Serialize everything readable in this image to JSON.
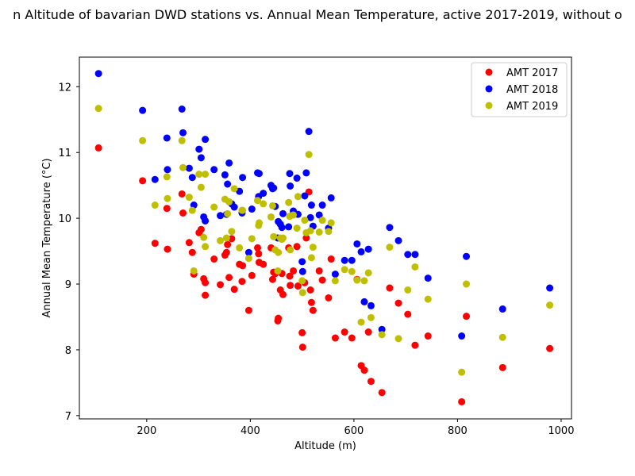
{
  "chart_data": {
    "type": "scatter",
    "title": "n Altitude of bavarian DWD stations vs. Annual Mean Temperature, active 2017-2019, without o",
    "xlabel": "Altitude (m)",
    "ylabel": "Annual Mean Temperature (°C)",
    "xlim": [
      70,
      1020
    ],
    "ylim": [
      6.95,
      12.45
    ],
    "xticks": [
      200,
      400,
      600,
      800,
      1000
    ],
    "yticks": [
      7,
      8,
      9,
      10,
      11,
      12
    ],
    "legend_position": "top-right",
    "grid": false,
    "x": [
      107,
      192,
      216,
      239,
      240,
      268,
      270,
      282,
      288,
      291,
      301,
      305,
      310,
      313,
      313,
      330,
      342,
      351,
      354,
      356,
      359,
      364,
      369,
      379,
      384,
      385,
      397,
      403,
      414,
      416,
      417,
      425,
      440,
      443,
      445,
      448,
      453,
      454,
      458,
      461,
      463,
      474,
      476,
      477,
      483,
      490,
      492,
      500,
      501,
      505,
      508,
      513,
      516,
      518,
      521,
      533,
      539,
      551,
      556,
      564,
      582,
      596,
      606,
      614,
      620,
      628,
      633,
      654,
      669,
      686,
      704,
      718,
      743,
      808,
      817,
      887,
      978
    ],
    "series": [
      {
        "name": "AMT 2017",
        "color": "#ff0000",
        "y": [
          11.07,
          10.57,
          9.62,
          10.15,
          9.53,
          10.37,
          10.08,
          9.63,
          9.48,
          9.15,
          9.78,
          9.83,
          9.08,
          9.02,
          8.83,
          9.38,
          8.99,
          9.44,
          9.48,
          9.6,
          9.1,
          9.69,
          8.92,
          9.3,
          9.04,
          9.28,
          8.6,
          9.13,
          9.55,
          9.46,
          9.33,
          9.3,
          9.55,
          9.07,
          9.18,
          9.16,
          8.44,
          8.48,
          8.91,
          9.16,
          8.84,
          9.55,
          9.12,
          8.98,
          9.2,
          9.57,
          8.97,
          8.26,
          8.04,
          9.02,
          9.7,
          10.4,
          8.91,
          8.72,
          8.6,
          9.2,
          9.06,
          8.79,
          9.38,
          8.18,
          8.27,
          8.18,
          9.07,
          7.76,
          7.69,
          8.27,
          7.52,
          7.35,
          8.94,
          8.71,
          8.54,
          8.07,
          8.21,
          7.21,
          8.51,
          7.73,
          8.02
        ]
      },
      {
        "name": "AMT 2018",
        "color": "#0000ff",
        "y": [
          12.2,
          11.64,
          10.59,
          11.22,
          10.74,
          11.66,
          11.3,
          10.76,
          10.62,
          10.2,
          11.05,
          10.92,
          10.02,
          11.2,
          9.96,
          10.74,
          10.04,
          10.66,
          10.06,
          10.52,
          10.84,
          10.22,
          10.17,
          10.41,
          10.08,
          10.62,
          9.48,
          10.14,
          10.69,
          10.33,
          10.68,
          10.38,
          10.5,
          10.45,
          10.46,
          10.18,
          9.7,
          9.95,
          9.91,
          9.86,
          10.07,
          9.87,
          10.68,
          10.49,
          10.11,
          10.61,
          10.06,
          9.34,
          9.19,
          10.34,
          10.69,
          11.32,
          10.01,
          10.2,
          9.88,
          10.05,
          10.2,
          9.85,
          10.31,
          9.15,
          9.36,
          9.36,
          9.61,
          9.49,
          8.73,
          9.53,
          8.67,
          8.31,
          9.86,
          9.66,
          9.45,
          9.45,
          9.09,
          8.21,
          9.42,
          8.62,
          8.94
        ]
      },
      {
        "name": "AMT 2019",
        "color": "#bfbf00",
        "y": [
          11.67,
          11.18,
          10.2,
          10.63,
          10.3,
          11.18,
          10.77,
          10.32,
          10.12,
          9.2,
          10.67,
          10.47,
          9.71,
          10.67,
          9.57,
          10.17,
          9.66,
          10.29,
          9.7,
          10.07,
          10.25,
          9.8,
          10.45,
          9.55,
          10.12,
          10.12,
          9.39,
          9.69,
          10.27,
          9.89,
          9.93,
          10.22,
          10.02,
          10.19,
          9.72,
          9.52,
          9.2,
          9.48,
          9.7,
          9.68,
          9.7,
          10.24,
          10.03,
          9.52,
          10.05,
          9.85,
          10.33,
          9.05,
          8.87,
          9.97,
          9.78,
          10.97,
          9.81,
          9.4,
          9.56,
          9.79,
          9.97,
          9.8,
          9.93,
          9.05,
          9.22,
          9.19,
          9.06,
          8.42,
          9.05,
          9.17,
          8.49,
          8.23,
          9.56,
          8.17,
          8.91,
          9.26,
          8.77,
          7.66,
          9.0,
          8.19,
          8.68
        ]
      }
    ]
  }
}
